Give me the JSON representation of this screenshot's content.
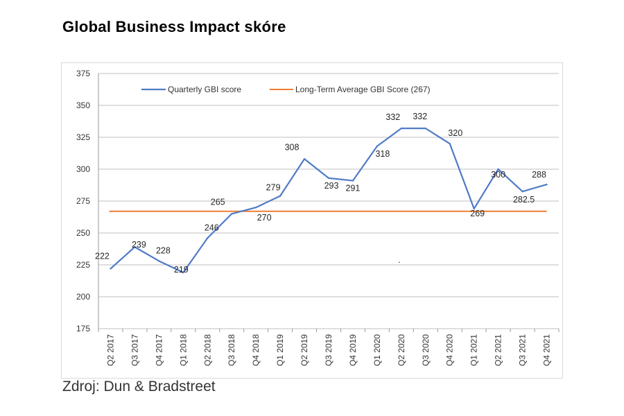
{
  "title": "Global Business Impact skóre",
  "source": "Zdroj: Dun & Bradstreet",
  "colors": {
    "quarterly": "#4f7ac7",
    "average": "#ed7d31",
    "grid": "#bfbfbf",
    "axis": "#999999"
  },
  "chart_data": {
    "type": "line",
    "title": "",
    "xlabel": "",
    "ylabel": "",
    "ylim": [
      175,
      375
    ],
    "yticks": [
      "175",
      "200",
      "225",
      "250",
      "275",
      "300",
      "325",
      "350",
      "375"
    ],
    "grid": true,
    "legend_position": "top",
    "categories": [
      "Q2 2017",
      "Q3 2017",
      "Q4 2017",
      "Q1 2018",
      "Q2 2018",
      "Q3 2018",
      "Q4 2018",
      "Q1 2019",
      "Q2 2019",
      "Q3 2019",
      "Q4 2019",
      "Q1 2020",
      "Q2 2020",
      "Q3 2020",
      "Q4 2020",
      "Q1 2021",
      "Q2 2021",
      "Q3 2021",
      "Q4 2021"
    ],
    "series": [
      {
        "name": "Quarterly GBI score",
        "values": [
          222,
          239,
          228,
          219,
          246,
          265,
          270,
          279,
          308,
          293,
          291,
          318,
          332,
          332,
          320,
          269,
          300,
          282.5,
          288
        ],
        "labels": [
          "222",
          "239",
          "228",
          "219",
          "246",
          "265",
          "270",
          "279",
          "308",
          "293",
          "291",
          "318",
          "332",
          "332",
          "320",
          "269",
          "300",
          "282.5",
          "288"
        ]
      },
      {
        "name": "Long-Term Average GBI Score (267)",
        "values": [
          267,
          267,
          267,
          267,
          267,
          267,
          267,
          267,
          267,
          267,
          267,
          267,
          267,
          267,
          267,
          267,
          267,
          267,
          267
        ]
      }
    ],
    "annotations": [
      "."
    ]
  }
}
